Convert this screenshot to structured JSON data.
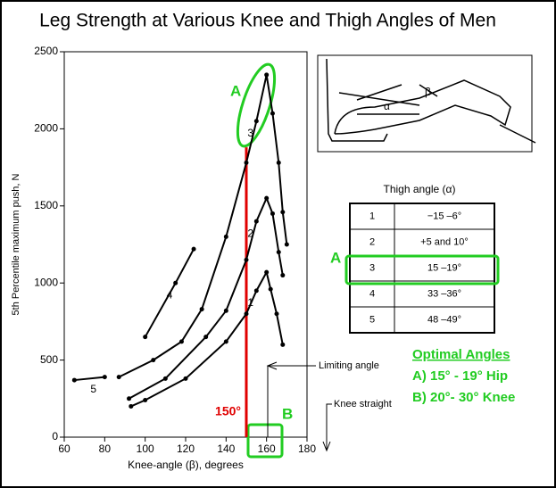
{
  "chart_data": {
    "type": "line",
    "title": "Leg Strength at Various Knee and Thigh Angles of Men",
    "x_label": "Knee-angle (β), degrees",
    "y_label": "5th Percentile maximum push, N",
    "xlim": [
      60,
      180
    ],
    "xticks": [
      60,
      80,
      100,
      120,
      140,
      160,
      180
    ],
    "ylim": [
      0,
      2500
    ],
    "yticks": [
      0,
      500,
      1000,
      1500,
      2000,
      2500
    ],
    "series": [
      {
        "name": "1",
        "color": "#000000",
        "x": [
          93,
          100,
          120,
          140,
          150,
          155,
          160,
          162,
          165,
          168
        ],
        "values": [
          200,
          240,
          380,
          620,
          800,
          950,
          1070,
          960,
          800,
          600
        ]
      },
      {
        "name": "2",
        "color": "#000000",
        "x": [
          92,
          110,
          130,
          140,
          150,
          155,
          160,
          163,
          166,
          168
        ],
        "values": [
          250,
          380,
          650,
          820,
          1150,
          1400,
          1550,
          1450,
          1200,
          1050
        ]
      },
      {
        "name": "3",
        "color": "#000000",
        "x": [
          87,
          104,
          118,
          128,
          140,
          150,
          155,
          160,
          163,
          166,
          168,
          170
        ],
        "values": [
          390,
          500,
          620,
          830,
          1300,
          1780,
          2050,
          2350,
          2100,
          1780,
          1460,
          1250
        ]
      },
      {
        "name": "4",
        "color": "#000000",
        "x": [
          100,
          115,
          124
        ],
        "values": [
          650,
          1000,
          1220
        ]
      },
      {
        "name": "5",
        "color": "#000000",
        "x": [
          65,
          80
        ],
        "values": [
          370,
          390
        ]
      }
    ],
    "annotations": {
      "a_label": "A",
      "b_label": "B",
      "line_label": "150°",
      "line_x": 150,
      "line_top": 1880,
      "limiting": "Limiting angle",
      "knee_straight": "Knee straight"
    },
    "table": {
      "header": "Thigh angle (α)",
      "rows": [
        [
          "1",
          "−15 –6°"
        ],
        [
          "2",
          "+5 and 10°"
        ],
        [
          "3",
          "15 –19°"
        ],
        [
          "4",
          "33 –36°"
        ],
        [
          "5",
          "48 –49°"
        ]
      ],
      "marker": "A"
    },
    "optimal": {
      "title": "Optimal Angles",
      "hip": "A) 15° - 19° Hip",
      "knee": "B) 20°- 30° Knee"
    }
  }
}
